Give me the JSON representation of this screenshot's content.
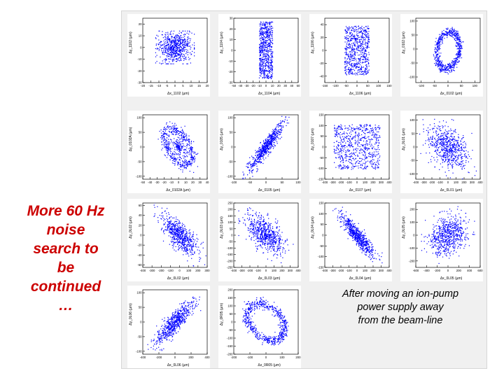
{
  "slide": {
    "left_text": [
      "More 60 Hz",
      "noise",
      "search to",
      "be",
      "continued",
      "…"
    ],
    "note": [
      "After moving an ion-pump",
      "power supply  away",
      "from the beam-line"
    ],
    "accent_color": "#cc0000",
    "point_color": "#0000ff",
    "panel_background": "#f0f0f0"
  },
  "chart_data": [
    {
      "type": "scatter",
      "xlabel": "Δx_1102 (µm)",
      "ylabel": "Δy_1102 (µm)",
      "xticks": [
        "-20",
        "-15",
        "-10",
        "-5",
        "0",
        "5",
        "10",
        "15",
        "20"
      ],
      "yticks": [
        "20",
        "10",
        "0",
        "-10",
        "-20",
        "-30"
      ],
      "xlim": [
        -20,
        20
      ],
      "ylim": [
        -30,
        25
      ],
      "cloud": {
        "center": [
          0,
          0
        ],
        "spread": [
          12,
          14
        ],
        "correlation": 0,
        "shape": "gaussian-grid"
      }
    },
    {
      "type": "scatter",
      "xlabel": "Δx_1104 (µm)",
      "ylabel": "Δy_1104 (µm)",
      "xticks": [
        "-50",
        "-40",
        "-30",
        "-20",
        "-10",
        "0",
        "10",
        "20",
        "30",
        "40",
        "50"
      ],
      "yticks": [
        "30",
        "20",
        "10",
        "0",
        "-10",
        "-20",
        "-30"
      ],
      "xlim": [
        -50,
        50
      ],
      "ylim": [
        -30,
        30
      ],
      "cloud": {
        "center": [
          0,
          0
        ],
        "spread": [
          11,
          28
        ],
        "correlation": 0,
        "shape": "box"
      }
    },
    {
      "type": "scatter",
      "xlabel": "Δx_1106 (µm)",
      "ylabel": "Δy_1106 (µm)",
      "xticks": [
        "-150",
        "-100",
        "-50",
        "0",
        "50",
        "100",
        "150"
      ],
      "yticks": [
        "40",
        "20",
        "0",
        "-20",
        "-40"
      ],
      "xlim": [
        -150,
        150
      ],
      "ylim": [
        -50,
        50
      ],
      "cloud": {
        "center": [
          0,
          0
        ],
        "spread": [
          60,
          40
        ],
        "correlation": 0,
        "shape": "box"
      }
    },
    {
      "type": "scatter",
      "xlabel": "Δx_0102 (µm)",
      "ylabel": "Δy_0102 (µm)",
      "xticks": [
        "-100",
        "-50",
        "0",
        "50",
        "100"
      ],
      "yticks": [
        "100",
        "50",
        "0",
        "-50",
        "-100"
      ],
      "xlim": [
        -120,
        120
      ],
      "ylim": [
        -120,
        110
      ],
      "cloud": {
        "center": [
          0,
          -5
        ],
        "spread": [
          55,
          85
        ],
        "correlation": 0.15,
        "shape": "ring"
      }
    },
    {
      "type": "scatter",
      "xlabel": "Δx_0102A (µm)",
      "ylabel": "Δy_0102A (µm)",
      "xticks": [
        "-50",
        "-40",
        "-30",
        "-20",
        "-10",
        "0",
        "10",
        "20",
        "30",
        "40"
      ],
      "yticks": [
        "100",
        "50",
        "0",
        "-50",
        "-100"
      ],
      "xlim": [
        -50,
        40
      ],
      "ylim": [
        -110,
        110
      ],
      "cloud": {
        "center": [
          0,
          0
        ],
        "spread": [
          28,
          85
        ],
        "correlation": -0.5,
        "shape": "ring-filled"
      }
    },
    {
      "type": "scatter",
      "xlabel": "Δx_0105 (µm)",
      "ylabel": "Δy_0105 (µm)",
      "xticks": [
        "-100",
        "-50",
        "0",
        "50",
        "100"
      ],
      "yticks": [
        "100",
        "50",
        "0",
        "-50",
        "-100"
      ],
      "xlim": [
        -100,
        100
      ],
      "ylim": [
        -110,
        110
      ],
      "cloud": {
        "center": [
          0,
          0
        ],
        "spread": [
          55,
          85
        ],
        "correlation": 0.92,
        "shape": "gaussian"
      }
    },
    {
      "type": "scatter",
      "xlabel": "Δx_0107 (µm)",
      "ylabel": "Δy_0107 (µm)",
      "xticks": [
        "-400",
        "-300",
        "-200",
        "-100",
        "0",
        "100",
        "200",
        "300",
        "400"
      ],
      "yticks": [
        "150",
        "100",
        "50",
        "0",
        "-50",
        "-100",
        "-150"
      ],
      "xlim": [
        -400,
        400
      ],
      "ylim": [
        -150,
        150
      ],
      "cloud": {
        "center": [
          0,
          0
        ],
        "spread": [
          300,
          110
        ],
        "correlation": 0,
        "shape": "box"
      }
    },
    {
      "type": "scatter",
      "xlabel": "Δx_0L01 (µm)",
      "ylabel": "Δy_0L01 (µm)",
      "xticks": [
        "-400",
        "-300",
        "-200",
        "-100",
        "0",
        "100",
        "200",
        "300",
        "400"
      ],
      "yticks": [
        "100",
        "50",
        "0",
        "-50",
        "-100"
      ],
      "xlim": [
        -400,
        400
      ],
      "ylim": [
        -120,
        120
      ],
      "cloud": {
        "center": [
          0,
          0
        ],
        "spread": [
          270,
          95
        ],
        "correlation": -0.45,
        "shape": "gaussian"
      }
    },
    {
      "type": "scatter",
      "xlabel": "Δx_0L02 (µm)",
      "ylabel": "Δy_0L02 (µm)",
      "xticks": [
        "-400",
        "-300",
        "-200",
        "-100",
        "0",
        "100",
        "200",
        "300"
      ],
      "yticks": [
        "60",
        "40",
        "20",
        "0",
        "-20",
        "-40",
        "-60"
      ],
      "xlim": [
        -400,
        300
      ],
      "ylim": [
        -65,
        65
      ],
      "cloud": {
        "center": [
          0,
          0
        ],
        "spread": [
          220,
          45
        ],
        "correlation": -0.75,
        "shape": "gaussian"
      }
    },
    {
      "type": "scatter",
      "xlabel": "Δx_0L03 (µm)",
      "ylabel": "Δy_0L03 (µm)",
      "xticks": [
        "-400",
        "-300",
        "-200",
        "-100",
        "0",
        "100",
        "200",
        "300",
        "400"
      ],
      "yticks": [
        "250",
        "200",
        "150",
        "100",
        "50",
        "0",
        "-50",
        "-100",
        "-150",
        "-200",
        "-250"
      ],
      "xlim": [
        -400,
        400
      ],
      "ylim": [
        -250,
        250
      ],
      "cloud": {
        "center": [
          0,
          0
        ],
        "spread": [
          260,
          170
        ],
        "correlation": -0.6,
        "shape": "gaussian"
      }
    },
    {
      "type": "scatter",
      "xlabel": "Δx_0L04 (µm)",
      "ylabel": "Δy_0L04 (µm)",
      "xticks": [
        "-400",
        "-300",
        "-200",
        "-100",
        "0",
        "100",
        "200",
        "300",
        "400"
      ],
      "yticks": [
        "150",
        "100",
        "50",
        "0",
        "-50",
        "-100",
        "-150"
      ],
      "xlim": [
        -400,
        400
      ],
      "ylim": [
        -150,
        150
      ],
      "cloud": {
        "center": [
          0,
          0
        ],
        "spread": [
          240,
          110
        ],
        "correlation": -0.9,
        "shape": "gaussian"
      }
    },
    {
      "type": "scatter",
      "xlabel": "Δx_0L05 (µm)",
      "ylabel": "Δy_0L05 (µm)",
      "xticks": [
        "-600",
        "-400",
        "-200",
        "0",
        "200",
        "400",
        "600"
      ],
      "yticks": [
        "200",
        "100",
        "0",
        "-100",
        "-200"
      ],
      "xlim": [
        -600,
        600
      ],
      "ylim": [
        -250,
        250
      ],
      "cloud": {
        "center": [
          0,
          0
        ],
        "spread": [
          380,
          160
        ],
        "correlation": 0.3,
        "shape": "gaussian"
      }
    },
    {
      "type": "scatter",
      "xlabel": "Δx_0L06 (µm)",
      "ylabel": "Δy_0L06 (µm)",
      "xticks": [
        "-400",
        "-200",
        "0",
        "200",
        "400"
      ],
      "yticks": [
        "100",
        "50",
        "0",
        "-50",
        "-100"
      ],
      "xlim": [
        -400,
        400
      ],
      "ylim": [
        -110,
        110
      ],
      "cloud": {
        "center": [
          0,
          0
        ],
        "spread": [
          260,
          80
        ],
        "correlation": 0.85,
        "shape": "gaussian"
      }
    },
    {
      "type": "scatter",
      "xlabel": "Δx_0R05 (µm)",
      "ylabel": "Δy_0R05 (µm)",
      "xticks": [
        "-200",
        "-100",
        "0",
        "100",
        "200"
      ],
      "yticks": [
        "200",
        "150",
        "100",
        "50",
        "0",
        "-50",
        "-100",
        "-150",
        "-200"
      ],
      "xlim": [
        -200,
        200
      ],
      "ylim": [
        -200,
        200
      ],
      "cloud": {
        "center": [
          0,
          0
        ],
        "spread": [
          150,
          150
        ],
        "correlation": -0.35,
        "shape": "ring"
      }
    }
  ]
}
